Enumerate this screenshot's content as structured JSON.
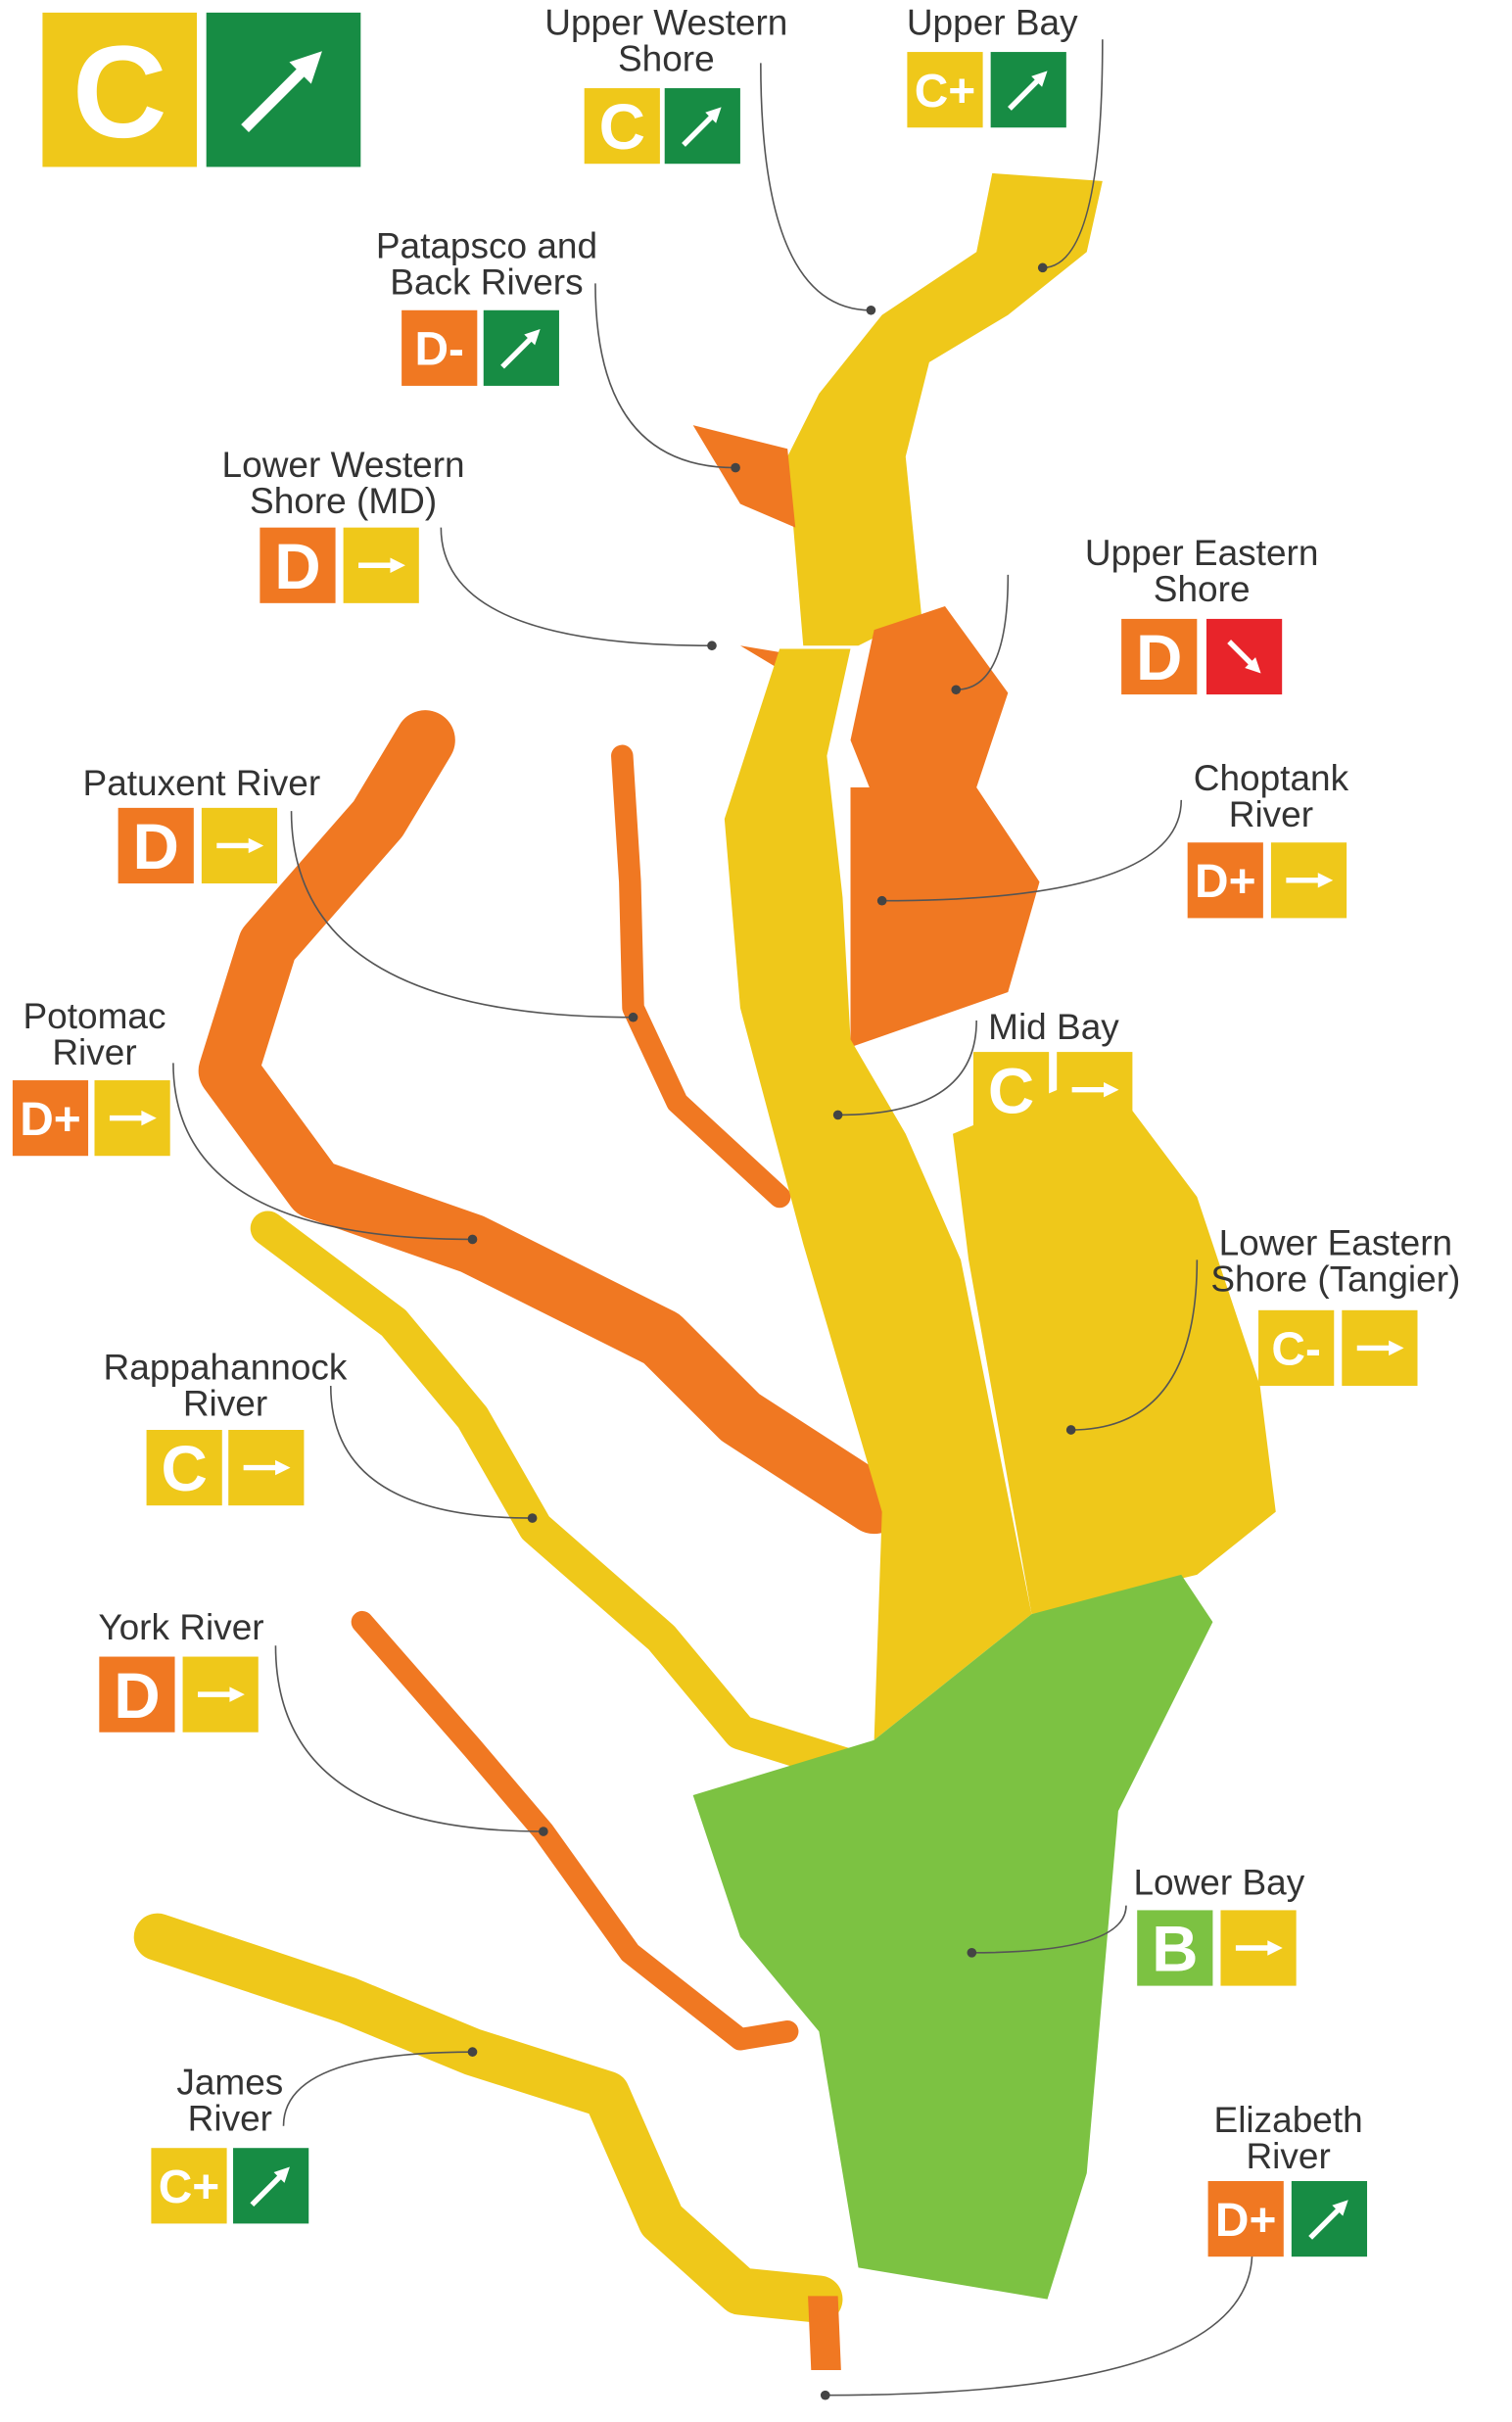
{
  "overall": {
    "grade": "C",
    "grade_color": "#efc81a",
    "trend": "up",
    "trend_color": "#178c44"
  },
  "regions": [
    {
      "name": "Upper Western\nShore",
      "grade": "C",
      "grade_color": "#efc81a",
      "trend": "up",
      "trend_color": "#178c44"
    },
    {
      "name": "Upper Bay",
      "grade": "C+",
      "grade_color": "#efc81a",
      "trend": "up",
      "trend_color": "#178c44"
    },
    {
      "name": "Patapsco and\nBack Rivers",
      "grade": "D-",
      "grade_color": "#f07822",
      "trend": "up",
      "trend_color": "#178c44"
    },
    {
      "name": "Lower Western\nShore (MD)",
      "grade": "D",
      "grade_color": "#f07822",
      "trend": "flat",
      "trend_color": "#efc81a"
    },
    {
      "name": "Upper Eastern\nShore",
      "grade": "D",
      "grade_color": "#f07822",
      "trend": "down",
      "trend_color": "#e8242a"
    },
    {
      "name": "Patuxent River",
      "grade": "D",
      "grade_color": "#f07822",
      "trend": "flat",
      "trend_color": "#efc81a"
    },
    {
      "name": "Choptank\nRiver",
      "grade": "D+",
      "grade_color": "#f07822",
      "trend": "flat",
      "trend_color": "#efc81a"
    },
    {
      "name": "Potomac\nRiver",
      "grade": "D+",
      "grade_color": "#f07822",
      "trend": "flat",
      "trend_color": "#efc81a"
    },
    {
      "name": "Mid Bay",
      "grade": "C",
      "grade_color": "#efc81a",
      "trend": "flat",
      "trend_color": "#efc81a"
    },
    {
      "name": "Lower Eastern\nShore (Tangier)",
      "grade": "C-",
      "grade_color": "#efc81a",
      "trend": "flat",
      "trend_color": "#efc81a"
    },
    {
      "name": "Rappahannock\nRiver",
      "grade": "C",
      "grade_color": "#efc81a",
      "trend": "flat",
      "trend_color": "#efc81a"
    },
    {
      "name": "York River",
      "grade": "D",
      "grade_color": "#f07822",
      "trend": "flat",
      "trend_color": "#efc81a"
    },
    {
      "name": "Lower Bay",
      "grade": "B",
      "grade_color": "#7cc242",
      "trend": "flat",
      "trend_color": "#efc81a"
    },
    {
      "name": "James\nRiver",
      "grade": "C+",
      "grade_color": "#efc81a",
      "trend": "up",
      "trend_color": "#178c44"
    },
    {
      "name": "Elizabeth\nRiver",
      "grade": "D+",
      "grade_color": "#f07822",
      "trend": "up",
      "trend_color": "#178c44"
    }
  ]
}
